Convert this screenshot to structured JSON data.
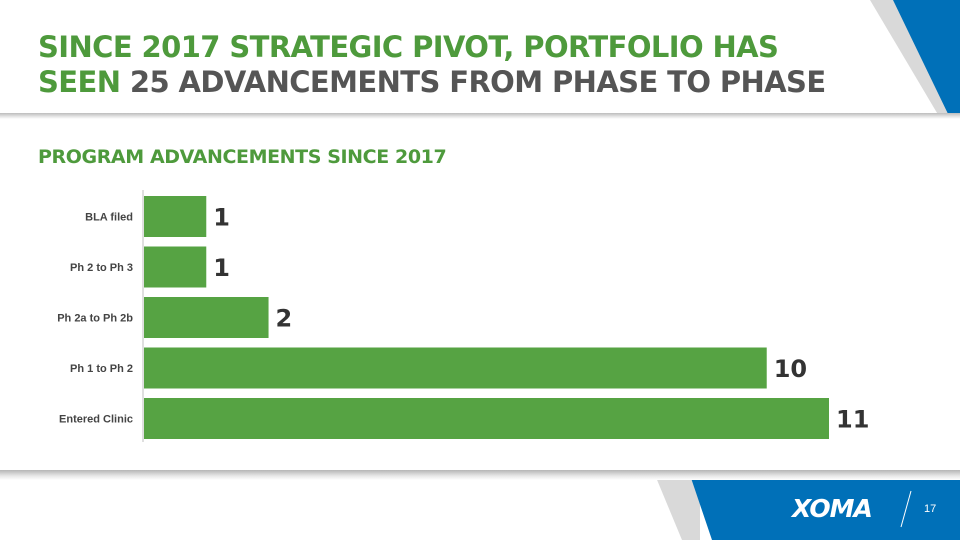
{
  "slide": {
    "title_line1": "SINCE 2017 STRATEGIC PIVOT, PORTFOLIO HAS",
    "title_line2_green": "SEEN",
    "title_line2_gray": "25 ADVANCEMENTS FROM PHASE TO PHASE",
    "logo": "XOMA",
    "page_number": "17"
  },
  "colors": {
    "accent_green": "#4e9a3c",
    "bar_green": "#56a343",
    "brand_blue": "#0070b8",
    "title_gray": "#555555"
  },
  "chart_data": {
    "type": "bar",
    "orientation": "horizontal",
    "title": "PROGRAM ADVANCEMENTS SINCE 2017",
    "categories": [
      "BLA filed",
      "Ph 2 to Ph 3",
      "Ph 2a to Ph 2b",
      "Ph 1 to Ph 2",
      "Entered Clinic"
    ],
    "values": [
      1,
      1,
      2,
      10,
      11
    ],
    "xlim": [
      0,
      11
    ],
    "grid": false,
    "legend": "none"
  }
}
